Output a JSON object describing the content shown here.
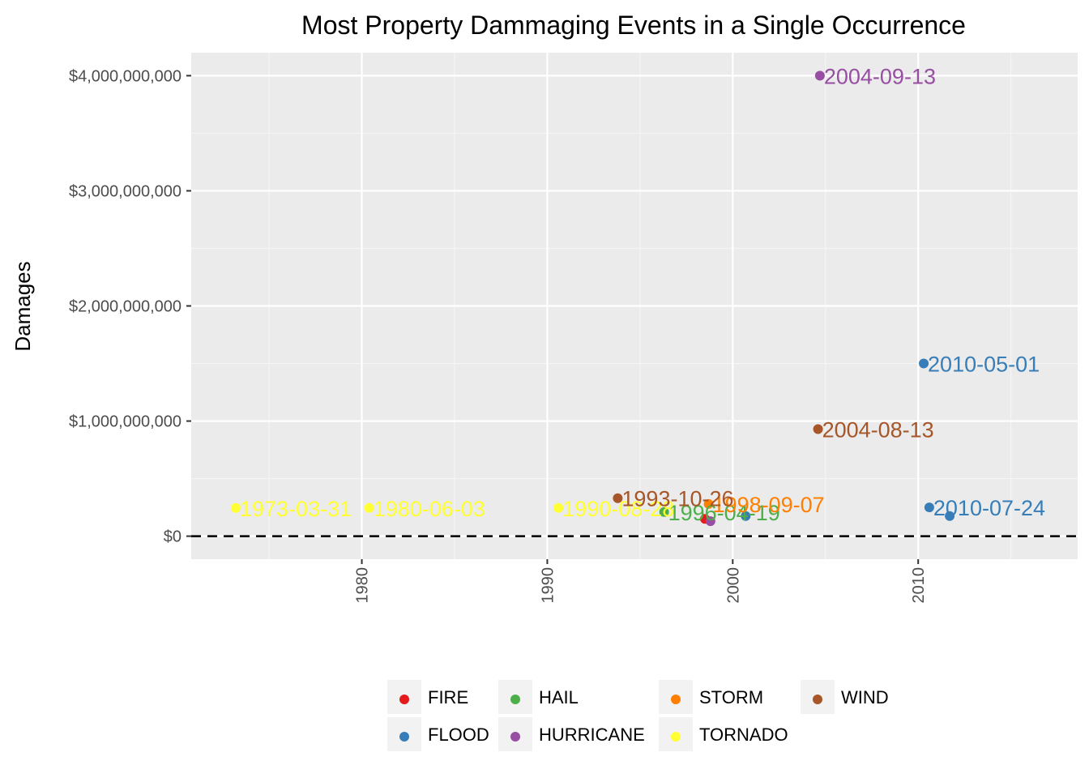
{
  "chart_data": {
    "type": "scatter",
    "title": "Most Property Dammaging Events in a Single Occurrence",
    "xlabel": "",
    "ylabel": "Damages",
    "xlim": [
      1970.8,
      2018.6
    ],
    "ylim": [
      -200000000,
      4200000000
    ],
    "x_ticks": [
      1980,
      1990,
      2000,
      2010
    ],
    "x_tick_labels": [
      "1980",
      "1990",
      "2000",
      "2010"
    ],
    "y_ticks": [
      0,
      1000000000,
      2000000000,
      3000000000,
      4000000000
    ],
    "y_tick_labels": [
      "$0",
      "$1,000,000,000",
      "$2,000,000,000",
      "$3,000,000,000",
      "$4,000,000,000"
    ],
    "reference_line": {
      "y": 0,
      "style": "dashed"
    },
    "grid": true,
    "legend_position": "bottom",
    "series": [
      {
        "name": "FIRE",
        "color": "#E41A1C",
        "points": [
          {
            "x": 1998.5,
            "y": 150000000,
            "label": ""
          }
        ]
      },
      {
        "name": "FLOOD",
        "color": "#377EB8",
        "points": [
          {
            "x": 2010.3,
            "y": 1500000000,
            "label": "2010-05-01"
          },
          {
            "x": 2010.6,
            "y": 250000000,
            "label": "2010-07-24"
          },
          {
            "x": 2011.7,
            "y": 175000000,
            "label": ""
          },
          {
            "x": 2000.7,
            "y": 175000000,
            "label": ""
          }
        ]
      },
      {
        "name": "HAIL",
        "color": "#4DAF4A",
        "points": [
          {
            "x": 1996.3,
            "y": 210000000,
            "label": "1996-04-19"
          }
        ]
      },
      {
        "name": "HURRICANE",
        "color": "#984EA3",
        "points": [
          {
            "x": 2004.7,
            "y": 4000000000,
            "label": "2004-09-13"
          },
          {
            "x": 1998.8,
            "y": 130000000,
            "label": ""
          }
        ]
      },
      {
        "name": "STORM",
        "color": "#FF7F00",
        "points": [
          {
            "x": 1998.7,
            "y": 280000000,
            "label": "1998-09-07"
          }
        ]
      },
      {
        "name": "TORNADO",
        "color": "#FFFF33",
        "points": [
          {
            "x": 1973.2,
            "y": 245000000,
            "label": "1973-03-31"
          },
          {
            "x": 1980.4,
            "y": 245000000,
            "label": "1980-06-03"
          },
          {
            "x": 1990.6,
            "y": 245000000,
            "label": "1990-08-28"
          }
        ]
      },
      {
        "name": "WIND",
        "color": "#A65628",
        "points": [
          {
            "x": 1993.8,
            "y": 330000000,
            "label": "1993-10-26"
          },
          {
            "x": 2004.6,
            "y": 930000000,
            "label": "2004-08-13"
          }
        ]
      }
    ],
    "legend_rows": [
      [
        "FIRE",
        "HAIL",
        "STORM",
        "WIND"
      ],
      [
        "FLOOD",
        "HURRICANE",
        "TORNADO"
      ]
    ]
  }
}
